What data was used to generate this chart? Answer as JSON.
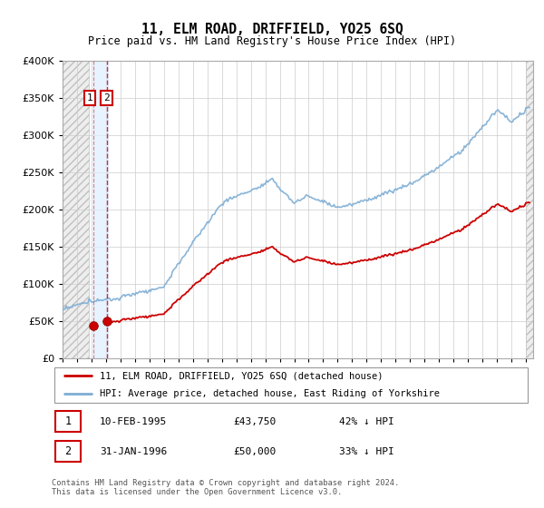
{
  "title": "11, ELM ROAD, DRIFFIELD, YO25 6SQ",
  "subtitle": "Price paid vs. HM Land Registry's House Price Index (HPI)",
  "legend_line1": "11, ELM ROAD, DRIFFIELD, YO25 6SQ (detached house)",
  "legend_line2": "HPI: Average price, detached house, East Riding of Yorkshire",
  "sale1_date": "10-FEB-1995",
  "sale1_price": "£43,750",
  "sale1_hpi": "42% ↓ HPI",
  "sale2_date": "31-JAN-1996",
  "sale2_price": "£50,000",
  "sale2_hpi": "33% ↓ HPI",
  "footnote": "Contains HM Land Registry data © Crown copyright and database right 2024.\nThis data is licensed under the Open Government Licence v3.0.",
  "price_color": "#cc0000",
  "hpi_color": "#7dadd4",
  "sale_marker_color": "#cc0000",
  "ylim_min": 0,
  "ylim_max": 400000,
  "sale1_year": 1995.12,
  "sale1_val": 43750,
  "sale2_year": 1996.08,
  "sale2_val": 50000,
  "xmin": 1993.0,
  "xmax": 2025.5
}
